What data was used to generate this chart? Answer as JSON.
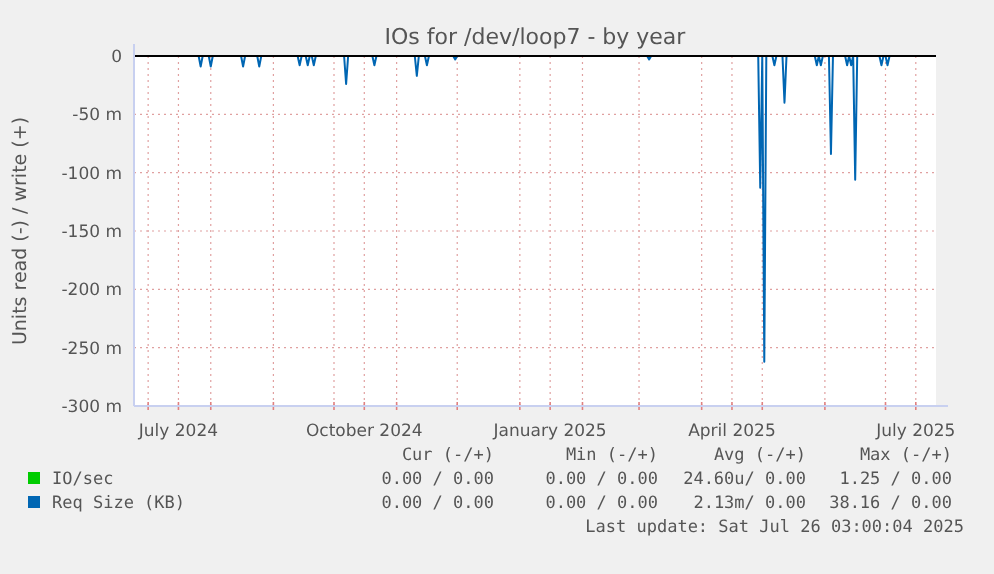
{
  "chart_data": {
    "type": "line",
    "title": "IOs for /dev/loop7 - by year",
    "ylabel": "Units read (-) / write (+)",
    "xlim": [
      "2024-06-24",
      "2025-07-26"
    ],
    "xticks": [
      {
        "value": "2024-07-01",
        "label": null
      },
      {
        "value": "2024-07-16",
        "label": "July 2024"
      },
      {
        "value": "2024-08-01",
        "label": null
      },
      {
        "value": "2024-09-01",
        "label": null
      },
      {
        "value": "2024-10-01",
        "label": null
      },
      {
        "value": "2024-10-16",
        "label": "October 2024"
      },
      {
        "value": "2024-11-01",
        "label": null
      },
      {
        "value": "2024-12-01",
        "label": null
      },
      {
        "value": "2025-01-01",
        "label": null
      },
      {
        "value": "2025-01-16",
        "label": "January 2025"
      },
      {
        "value": "2025-02-01",
        "label": null
      },
      {
        "value": "2025-03-01",
        "label": null
      },
      {
        "value": "2025-04-01",
        "label": null
      },
      {
        "value": "2025-04-16",
        "label": "April 2025"
      },
      {
        "value": "2025-05-01",
        "label": null
      },
      {
        "value": "2025-06-01",
        "label": null
      },
      {
        "value": "2025-07-01",
        "label": null
      },
      {
        "value": "2025-07-16",
        "label": "July 2025"
      }
    ],
    "ylim": [
      -300,
      0
    ],
    "yticks": [
      {
        "value": -300,
        "label": "-300 m"
      },
      {
        "value": -250,
        "label": "-250 m"
      },
      {
        "value": -200,
        "label": "-200 m"
      },
      {
        "value": -150,
        "label": "-150 m"
      },
      {
        "value": -100,
        "label": "-100 m"
      },
      {
        "value": -50,
        "label": "-50 m"
      },
      0
    ],
    "grid": true,
    "legend": "bottom",
    "ref_lines": [
      {
        "axis": "y",
        "value": 0,
        "color": "#000000"
      }
    ],
    "series": [
      {
        "name": "IO/sec",
        "color": "#00cc00"
      },
      {
        "name": "Req Size (KB)",
        "color": "#0066b3",
        "x": [
          "2024-06-24",
          "2024-07-26",
          "2024-07-27",
          "2024-07-28",
          "2024-07-31",
          "2024-08-01",
          "2024-08-02",
          "2024-08-16",
          "2024-08-17",
          "2024-08-18",
          "2024-08-24",
          "2024-08-25",
          "2024-08-26",
          "2024-09-13",
          "2024-09-14",
          "2024-09-15",
          "2024-09-17",
          "2024-09-18",
          "2024-09-19",
          "2024-09-20",
          "2024-09-21",
          "2024-09-22",
          "2024-10-06",
          "2024-10-07",
          "2024-10-08",
          "2024-10-20",
          "2024-10-21",
          "2024-10-22",
          "2024-11-10",
          "2024-11-11",
          "2024-11-12",
          "2024-11-15",
          "2024-11-16",
          "2024-11-17",
          "2024-11-29",
          "2024-11-30",
          "2024-12-01",
          "2025-03-05",
          "2025-03-06",
          "2025-03-07",
          "2025-04-29",
          "2025-04-30",
          "2025-05-01",
          "2025-05-02",
          "2025-05-03",
          "2025-05-06",
          "2025-05-07",
          "2025-05-08",
          "2025-05-11",
          "2025-05-12",
          "2025-05-13",
          "2025-05-27",
          "2025-05-28",
          "2025-05-29",
          "2025-05-30",
          "2025-05-31",
          "2025-06-03",
          "2025-06-04",
          "2025-06-05",
          "2025-06-11",
          "2025-06-12",
          "2025-06-13",
          "2025-06-14",
          "2025-06-15",
          "2025-06-16",
          "2025-06-17",
          "2025-06-28",
          "2025-06-29",
          "2025-06-30",
          "2025-07-01",
          "2025-07-02",
          "2025-07-03",
          "2025-07-26"
        ],
        "values": [
          0,
          0,
          -9,
          0,
          0,
          -9,
          0,
          0,
          -9,
          0,
          0,
          -9,
          0,
          0,
          -8,
          0,
          0,
          -8,
          0,
          0,
          -8,
          0,
          0,
          -24,
          0,
          0,
          -8,
          0,
          0,
          -17,
          0,
          0,
          -8,
          0,
          0,
          -3,
          0,
          0,
          -3,
          0,
          0,
          -113,
          0,
          -262,
          0,
          0,
          -8,
          0,
          0,
          -40,
          0,
          0,
          -8,
          0,
          -8,
          0,
          0,
          -84,
          0,
          0,
          -8,
          0,
          -8,
          0,
          -106,
          0,
          0,
          -8,
          0,
          0,
          -8,
          0,
          0
        ]
      }
    ],
    "annotations": [
      "Cur (-/+)",
      "Min (-/+)",
      "Avg (-/+)",
      "Max (-/+)",
      "0.00 / 0.00",
      "0.00 / 0.00",
      "24.60u/ 0.00",
      "1.25 / 0.00",
      "0.00 / 0.00",
      "0.00 / 0.00",
      "2.13m/ 0.00",
      "38.16 / 0.00",
      "Last update: Sat Jul 26 03:00:04 2025"
    ]
  }
}
